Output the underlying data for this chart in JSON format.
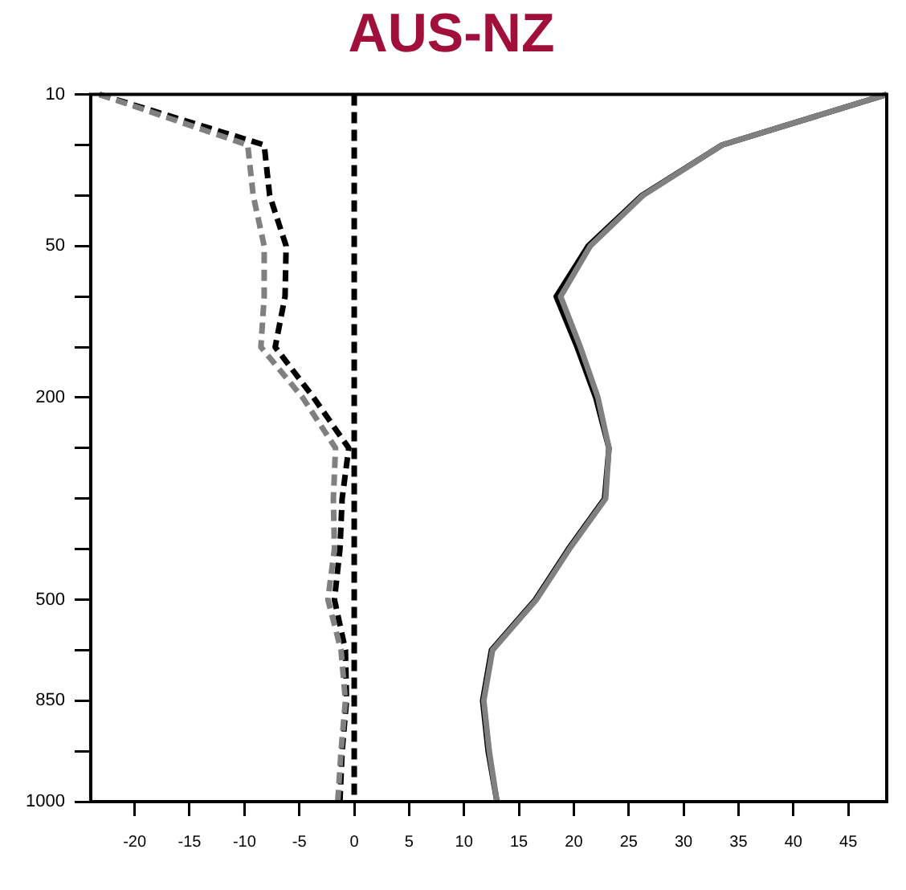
{
  "chart_data": {
    "type": "line",
    "title": "AUS-NZ",
    "orientation": "horizontal",
    "categories": [
      "10",
      null,
      null,
      "50",
      null,
      null,
      "200",
      null,
      null,
      null,
      "500",
      null,
      "850",
      null,
      "1000"
    ],
    "series": [
      {
        "color": "#808080",
        "line_style": "solid",
        "values": [
          48.5,
          33.5,
          26.3,
          21.5,
          18.8,
          20.6,
          22.2,
          23.2,
          22.9,
          19.6,
          16.6,
          12.6,
          11.8,
          12.3,
          13.0
        ]
      },
      {
        "color": "#000000",
        "line_style": "solid",
        "values": [
          48.5,
          33.5,
          26.2,
          21.3,
          18.4,
          20.3,
          22.0,
          23.2,
          22.8,
          19.5,
          16.5,
          12.5,
          11.7,
          12.2,
          13.0
        ]
      },
      {
        "color": "#808080",
        "line_style": "dashed",
        "values": [
          -23.2,
          -9.7,
          -9.2,
          -8.2,
          -8.2,
          -8.5,
          -4.7,
          -1.7,
          -1.9,
          -1.8,
          -2.4,
          -1.2,
          -0.8,
          -1.2,
          -1.5
        ]
      },
      {
        "color": "#000000",
        "line_style": "dashed",
        "values": [
          -23.2,
          -8.2,
          -7.7,
          -6.2,
          -6.3,
          -7.2,
          -3.7,
          -0.5,
          -1.1,
          -1.3,
          -1.8,
          -0.8,
          -0.7,
          -1.1,
          -1.3
        ]
      }
    ],
    "xlim": [
      -24,
      48.5
    ],
    "xticks": [
      -20,
      -15,
      -10,
      -5,
      0,
      5,
      10,
      15,
      20,
      25,
      30,
      35,
      40,
      45
    ],
    "ref_lines": [
      {
        "axis": "x",
        "value": 0,
        "color": "#000000",
        "line_style": "dashed"
      }
    ],
    "grid": false,
    "legend": false
  }
}
